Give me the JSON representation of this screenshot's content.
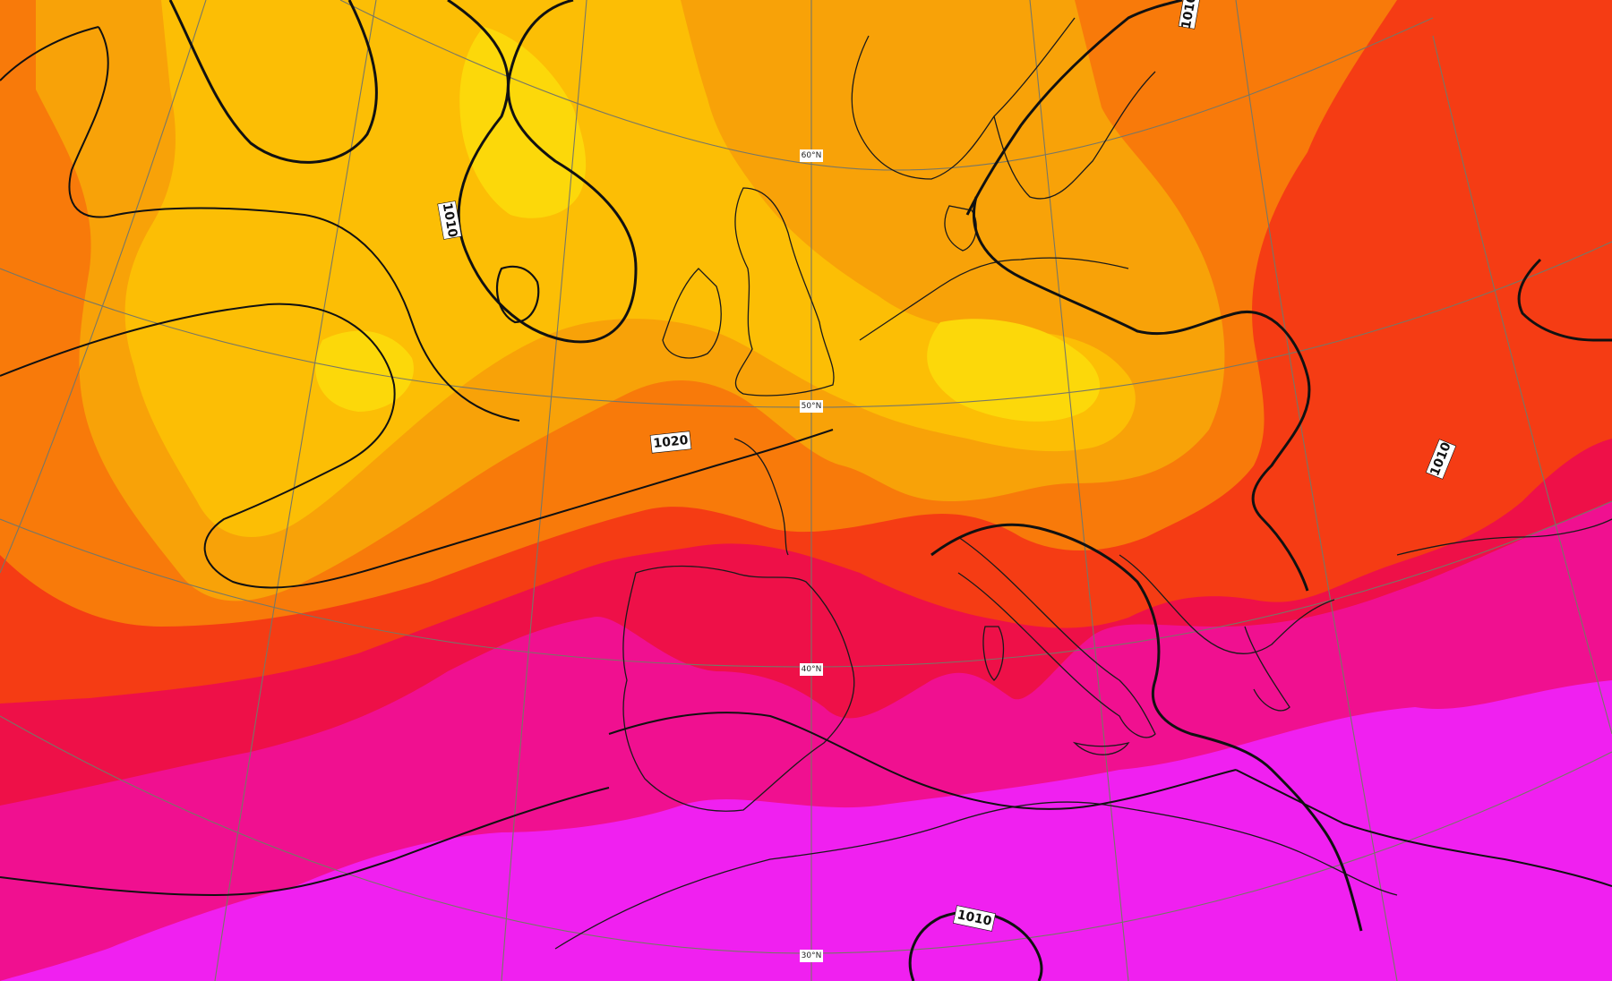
{
  "colors": {
    "very_hot": "#f020f0",
    "hot_magenta": "#f01090",
    "warm_red": "#ee1048",
    "orange_red": "#f53c14",
    "orange": "#f87a0a",
    "light_orange": "#f8a208",
    "yellow_orange": "#fcbe05",
    "yellow": "#fcd80a",
    "isobar": "#111111",
    "coastline": "#1a1a1a",
    "graticule": "#777766"
  },
  "isobar_labels": [
    {
      "id": "iso-1010-north-atlantic",
      "text": "1010"
    },
    {
      "id": "iso-1020-biscay",
      "text": "1020"
    },
    {
      "id": "iso-1010-black-sea",
      "text": "1010"
    },
    {
      "id": "iso-1010-scandinavia",
      "text": "1010"
    },
    {
      "id": "iso-1010-sahara",
      "text": "1010"
    }
  ],
  "latitude_labels": [
    {
      "id": "lat-label-60n",
      "text": "60°N"
    },
    {
      "id": "lat-label-50n",
      "text": "50°N"
    },
    {
      "id": "lat-label-40n",
      "text": "40°N"
    },
    {
      "id": "lat-label-30n",
      "text": "30°N"
    }
  ]
}
